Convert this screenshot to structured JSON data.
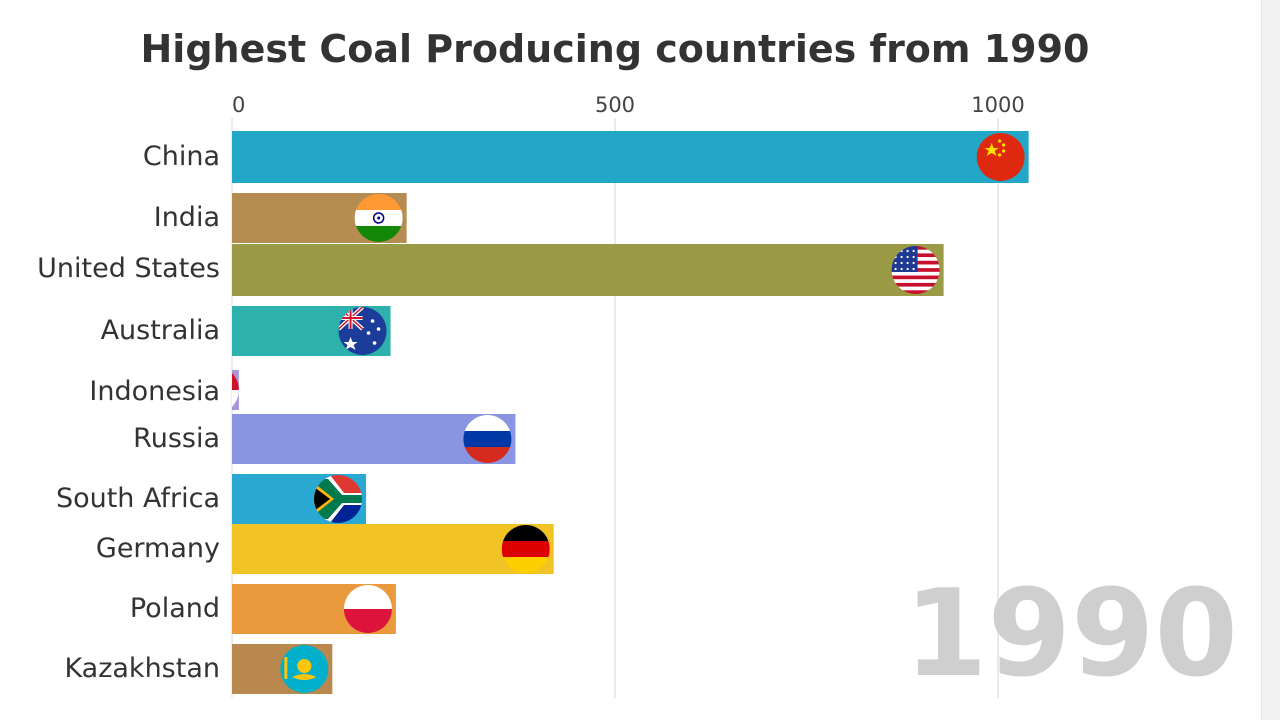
{
  "chart_data": {
    "type": "bar",
    "orientation": "horizontal",
    "title": "Highest Coal Producing countries from 1990",
    "xlim": [
      0,
      1000
    ],
    "ticks": [
      {
        "value": 0,
        "label": "0"
      },
      {
        "value": 500,
        "label": "500"
      },
      {
        "value": 1000,
        "label": "1000"
      }
    ],
    "grid": true,
    "year_label": "1990",
    "categories": [
      "China",
      "India",
      "United States",
      "Australia",
      "Indonesia",
      "Russia",
      "South Africa",
      "Germany",
      "Poland",
      "Kazakhstan"
    ],
    "values": [
      1040,
      228,
      929,
      207,
      9,
      370,
      175,
      420,
      214,
      131
    ],
    "colors": [
      "#22a7c7",
      "#b58c52",
      "#9b9a47",
      "#2eb1ad",
      "#a895d8",
      "#8a95e2",
      "#29a9d2",
      "#f2c324",
      "#ea9a3c",
      "#b8884f"
    ],
    "flags": [
      "china-flag",
      "india-flag",
      "usa-flag",
      "australia-flag",
      "indonesia-flag",
      "russia-flag",
      "south-africa-flag",
      "germany-flag",
      "poland-flag",
      "kazakhstan-flag"
    ]
  }
}
